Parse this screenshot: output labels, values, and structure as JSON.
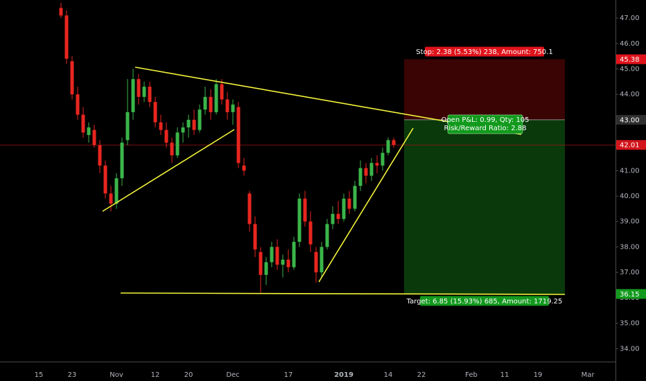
{
  "chart_data": {
    "type": "candlestick",
    "categories": [
      null,
      null,
      null,
      null,
      null,
      null,
      null,
      "15",
      null,
      null,
      null,
      null,
      null,
      "23",
      null,
      null,
      null,
      null,
      null,
      null,
      null,
      "Nov",
      null,
      null,
      null,
      null,
      null,
      null,
      "12",
      null,
      null,
      null,
      null,
      null,
      "20",
      null,
      null,
      null,
      null,
      null,
      null,
      null,
      "Dec",
      null,
      null,
      null,
      null,
      null,
      null,
      null,
      null,
      null,
      "17",
      null,
      null,
      null,
      null,
      null,
      null,
      null,
      null,
      null,
      "2019",
      null,
      null,
      null,
      null,
      null,
      null,
      null,
      "14",
      null,
      null,
      null,
      null,
      null,
      "22",
      null,
      null,
      null,
      null,
      null,
      null,
      null,
      null,
      "Feb",
      null,
      null,
      null,
      null,
      null,
      "11",
      null,
      null,
      null,
      null,
      null,
      "19",
      null,
      null,
      null,
      null,
      null,
      null,
      null,
      null,
      "Mar",
      null,
      null,
      null,
      null
    ],
    "open": [
      null,
      null,
      null,
      null,
      null,
      null,
      null,
      null,
      null,
      null,
      null,
      47.4,
      47.1,
      45.3,
      44.0,
      43.2,
      42.4,
      42.6,
      42.0,
      41.2,
      40.1,
      39.7,
      40.7,
      42.2,
      43.3,
      44.6,
      43.9,
      44.3,
      43.7,
      42.9,
      42.6,
      42.1,
      41.6,
      42.5,
      42.7,
      43.0,
      42.6,
      43.4,
      43.9,
      43.3,
      44.4,
      43.8,
      43.3,
      43.5,
      41.2,
      40.1,
      38.9,
      37.8,
      36.9,
      37.4,
      38.0,
      37.3,
      37.5,
      37.2,
      38.2,
      39.9,
      39.0,
      37.8,
      37.0,
      38.0,
      38.9,
      39.3,
      39.1,
      39.9,
      39.5,
      40.4,
      41.1,
      40.8,
      41.3,
      41.2,
      41.7,
      42.2,
      null,
      null,
      null,
      null,
      null,
      null,
      null,
      null,
      null,
      null,
      null,
      null,
      null,
      null,
      null,
      null,
      null,
      null,
      null,
      null,
      null,
      null,
      null,
      null,
      null,
      null,
      null,
      null,
      null,
      null,
      null,
      null,
      null,
      null,
      null,
      null,
      null,
      null,
      null
    ],
    "high": [
      null,
      null,
      null,
      null,
      null,
      null,
      null,
      null,
      null,
      null,
      null,
      47.6,
      47.3,
      45.5,
      44.3,
      43.5,
      42.9,
      42.8,
      42.2,
      41.4,
      40.4,
      40.9,
      42.3,
      44.6,
      45.0,
      44.8,
      44.5,
      44.5,
      43.9,
      43.2,
      42.9,
      42.3,
      42.7,
      42.9,
      43.2,
      43.4,
      43.6,
      44.3,
      44.2,
      44.6,
      44.6,
      44.1,
      43.8,
      43.7,
      41.5,
      40.2,
      39.2,
      38.0,
      37.6,
      38.2,
      38.3,
      37.7,
      37.9,
      38.4,
      40.1,
      40.2,
      39.4,
      38.0,
      38.2,
      39.1,
      39.6,
      39.8,
      40.1,
      40.2,
      40.6,
      41.4,
      41.3,
      41.5,
      41.6,
      41.9,
      42.3,
      42.3,
      null,
      null,
      null,
      null,
      null,
      null,
      null,
      null,
      null,
      null,
      null,
      null,
      null,
      null,
      null,
      null,
      null,
      null,
      null,
      null,
      null,
      null,
      null,
      null,
      null,
      null,
      null,
      null,
      null,
      null,
      null,
      null,
      null,
      null,
      null,
      null,
      null,
      null,
      null
    ],
    "low": [
      null,
      null,
      null,
      null,
      null,
      null,
      null,
      null,
      null,
      null,
      null,
      47.0,
      45.2,
      43.8,
      43.0,
      42.3,
      42.1,
      41.9,
      40.9,
      39.9,
      39.4,
      39.5,
      40.4,
      42.0,
      43.0,
      43.6,
      43.7,
      43.5,
      42.7,
      42.4,
      41.9,
      41.3,
      41.5,
      42.1,
      42.3,
      42.4,
      42.5,
      43.2,
      43.0,
      43.2,
      43.6,
      43.0,
      42.8,
      41.1,
      40.8,
      38.6,
      37.6,
      36.2,
      36.5,
      37.2,
      37.1,
      36.8,
      37.0,
      37.1,
      38.0,
      38.8,
      37.8,
      36.6,
      36.8,
      37.9,
      38.7,
      38.9,
      39.0,
      39.3,
      39.4,
      40.2,
      40.5,
      40.6,
      40.9,
      41.0,
      41.6,
      41.9,
      null,
      null,
      null,
      null,
      null,
      null,
      null,
      null,
      null,
      null,
      null,
      null,
      null,
      null,
      null,
      null,
      null,
      null,
      null,
      null,
      null,
      null,
      null,
      null,
      null,
      null,
      null,
      null,
      null,
      null,
      null,
      null,
      null,
      null,
      null,
      null,
      null,
      null,
      null
    ],
    "close": [
      null,
      null,
      null,
      null,
      null,
      null,
      null,
      null,
      null,
      null,
      null,
      47.1,
      45.4,
      44.0,
      43.2,
      42.5,
      42.7,
      42.0,
      41.2,
      40.1,
      39.7,
      40.7,
      42.1,
      43.3,
      44.6,
      43.9,
      44.3,
      43.7,
      42.9,
      42.6,
      42.1,
      41.6,
      42.5,
      42.7,
      43.0,
      42.6,
      43.4,
      43.9,
      43.3,
      44.4,
      43.8,
      43.3,
      43.6,
      41.3,
      41.0,
      38.9,
      37.9,
      36.9,
      37.4,
      38.0,
      37.3,
      37.5,
      37.2,
      38.2,
      39.9,
      39.0,
      38.1,
      37.0,
      38.0,
      38.9,
      39.3,
      39.1,
      39.9,
      39.5,
      40.4,
      41.1,
      40.8,
      41.3,
      41.2,
      41.7,
      42.2,
      42.01,
      null,
      null,
      null,
      null,
      null,
      null,
      null,
      null,
      null,
      null,
      null,
      null,
      null,
      null,
      null,
      null,
      null,
      null,
      null,
      null,
      null,
      null,
      null,
      null,
      null,
      null,
      null,
      null,
      null,
      null,
      null,
      null,
      null,
      null,
      null,
      null,
      null,
      null,
      null
    ],
    "up_color": "#3bb54a",
    "down_color": "#e8261f",
    "ylim": [
      33.49,
      47.71
    ],
    "yticks": [
      {
        "value": 34,
        "label": "34.00"
      },
      {
        "value": 35,
        "label": "35.00"
      },
      {
        "value": 36,
        "label": "36.00"
      },
      {
        "value": 37,
        "label": "37.00"
      },
      {
        "value": 38,
        "label": "38.00"
      },
      {
        "value": 39,
        "label": "39.00"
      },
      {
        "value": 40,
        "label": "40.00"
      },
      {
        "value": 41,
        "label": "41.00"
      },
      {
        "value": 42,
        "label": "42.00"
      },
      {
        "value": 43,
        "label": "43.00"
      },
      {
        "value": 44,
        "label": "44.00"
      },
      {
        "value": 45,
        "label": "45.00"
      },
      {
        "value": 46,
        "label": "46.00"
      },
      {
        "value": 47,
        "label": "47.00"
      }
    ],
    "last_price": 42.01,
    "position": {
      "stop": 45.38,
      "entry": {
        "value": 43,
        "label": "43.00"
      },
      "target": 36.15,
      "stop_label": "Stop: 2.38 (5.53%) 238, Amount: 750.1",
      "pnl_label": "Open P&L: 0.99, Qty: 105",
      "rr_label": "Risk/Reward Ratio: 2.88",
      "target_label": "Target: 6.85 (15.93%) 685, Amount: 1719.25"
    }
  }
}
